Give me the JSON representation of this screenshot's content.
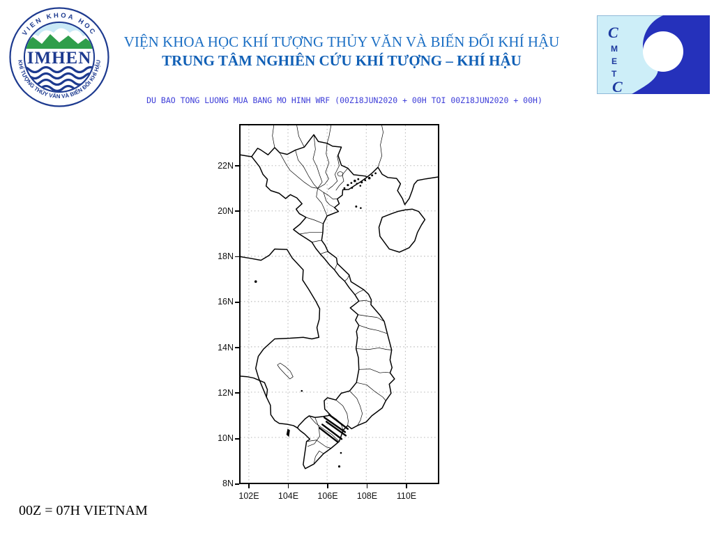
{
  "header": {
    "title_line1": "VIỆN KHOA HỌC KHÍ TƯỢNG THỦY VĂN VÀ BIẾN ĐỔI KHÍ HẬU",
    "title_line2": "TRUNG TÂM NGHIÊN CỨU KHÍ TƯỢNG – KHÍ HẬU"
  },
  "logos": {
    "imhen": {
      "arc_top": "VIEN KHOA HOC",
      "arc_bottom": "KHÍ TƯỢNG THỦY VĂN VÀ BIẾN ĐỔI KHÍ HẬU",
      "acronym": "IMHEN"
    },
    "metc": {
      "letters": [
        "C",
        "M",
        "E",
        "T",
        "C"
      ]
    }
  },
  "map": {
    "subtitle": "DU BAO TONG LUONG MUA BANG MO HINH WRF (00Z18JUN2020 + 00H TOI 00Z18JUN2020 + 00H)",
    "x_ticks": [
      "102E",
      "104E",
      "106E",
      "108E",
      "110E"
    ],
    "y_ticks": [
      "22N",
      "20N",
      "18N",
      "16N",
      "14N",
      "12N",
      "10N",
      "8N"
    ],
    "x_tick_lons": [
      102,
      104,
      106,
      108,
      110
    ],
    "y_tick_lats": [
      22,
      20,
      18,
      16,
      14,
      12,
      10,
      8
    ]
  },
  "footer": {
    "note": "00Z = 07H VIETNAM"
  },
  "colors": {
    "title1": "#1c6fc4",
    "title2": "#1160b6",
    "subtitle": "#3d3dd8",
    "grid": "#a8a8a8",
    "outline": "#000000",
    "logo_navy": "#1d3a8f",
    "logo_green": "#2f9e4b",
    "logo_sky": "#c9e9f6",
    "metc_dark": "#2531bb",
    "metc_pale": "#cdeef8"
  }
}
